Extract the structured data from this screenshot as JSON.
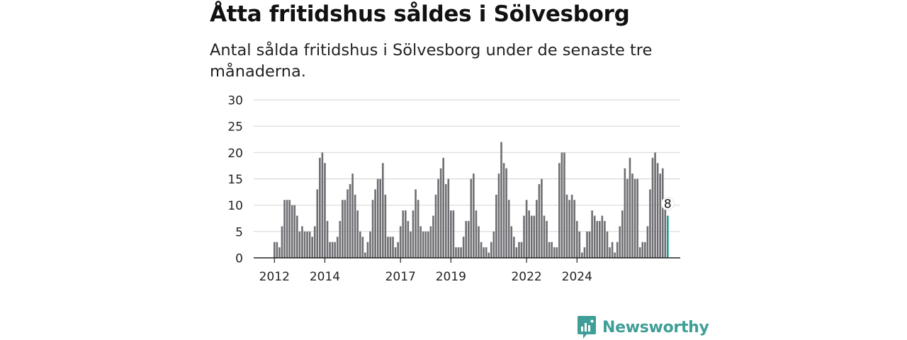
{
  "header": {
    "title": "Åtta fritidshus såldes i Sölvesborg",
    "subtitle": "Antal sålda fritidshus i Sölvesborg under de senaste tre månaderna."
  },
  "brand": {
    "name": "Newsworthy",
    "icon": "newsworthy-logo-icon",
    "color": "#3f9e97"
  },
  "chart_data": {
    "type": "bar",
    "title": "Åtta fritidshus såldes i Sölvesborg",
    "subtitle": "Antal sålda fritidshus i Sölvesborg under de senaste tre månaderna.",
    "xlabel": "",
    "ylabel": "",
    "ylim": [
      0,
      30
    ],
    "yticks": [
      0,
      5,
      10,
      15,
      20,
      25,
      30
    ],
    "xticks": [
      {
        "label": "2012",
        "index": 0
      },
      {
        "label": "2014",
        "index": 20
      },
      {
        "label": "2017",
        "index": 50
      },
      {
        "label": "2019",
        "index": 70
      },
      {
        "label": "2022",
        "index": 100
      },
      {
        "label": "2024",
        "index": 120
      }
    ],
    "grid": true,
    "bar_color": "#6e6e73",
    "highlight_color": "#1a9c95",
    "highlight_label": "8",
    "series": [
      {
        "values": [
          3,
          3,
          2,
          6,
          11,
          11,
          11,
          10,
          10,
          8,
          5,
          6,
          5,
          5,
          5,
          4,
          6,
          13,
          19,
          20,
          18,
          7,
          3,
          3,
          3,
          4,
          7,
          11,
          11,
          13,
          14,
          16,
          12,
          9,
          5,
          4,
          1,
          3,
          5,
          11,
          13,
          15,
          15,
          18,
          12,
          4,
          4,
          4,
          2,
          3,
          6,
          9,
          9,
          7,
          5,
          9,
          13,
          11,
          6,
          5,
          5,
          5,
          6,
          8,
          12,
          15,
          17,
          19,
          14,
          15,
          9,
          9,
          2,
          2,
          2,
          4,
          7,
          7,
          15,
          16,
          9,
          6,
          3,
          2,
          2,
          1,
          3,
          5,
          12,
          16,
          22,
          18,
          17,
          11,
          6,
          4,
          2,
          3,
          3,
          8,
          11,
          9,
          8,
          8,
          11,
          14,
          15,
          8,
          7,
          3,
          3,
          2,
          2,
          18,
          20,
          20,
          12,
          11,
          12,
          11,
          7,
          5,
          1,
          2,
          5,
          5,
          9,
          8,
          7,
          7,
          8,
          7,
          5,
          2,
          3,
          1,
          3,
          6,
          9,
          17,
          15,
          19,
          16,
          15,
          15,
          2,
          3,
          3,
          6,
          13,
          19,
          20,
          18,
          16,
          17,
          10,
          8
        ]
      }
    ]
  }
}
